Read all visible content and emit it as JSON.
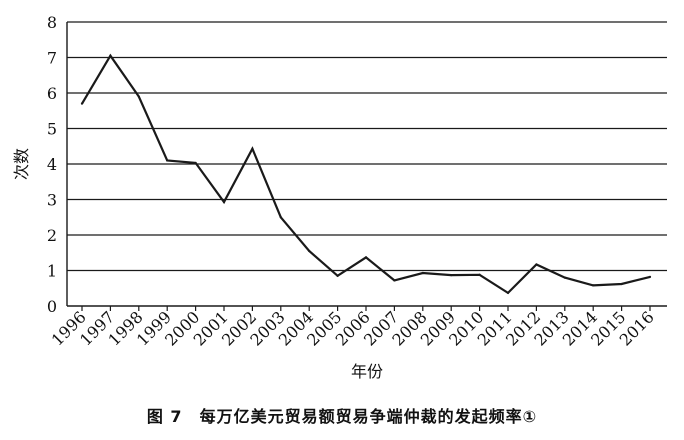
{
  "chart_data": {
    "type": "line",
    "xlabel": "年份",
    "ylabel": "次数",
    "ylim": [
      0,
      8
    ],
    "yticks": [
      "0",
      "1",
      "2",
      "3",
      "4",
      "5",
      "6",
      "7",
      "8"
    ],
    "grid": "horizontal",
    "categories": [
      "1996",
      "1997",
      "1998",
      "1999",
      "2000",
      "2001",
      "2002",
      "2003",
      "2004",
      "2005",
      "2006",
      "2007",
      "2008",
      "2009",
      "2010",
      "2011",
      "2012",
      "2013",
      "2014",
      "2015",
      "2016"
    ],
    "series": [
      {
        "values": [
          5.7,
          7.05,
          5.9,
          4.1,
          4.03,
          2.93,
          4.43,
          2.5,
          1.55,
          0.85,
          1.37,
          0.72,
          0.93,
          0.87,
          0.88,
          0.37,
          1.17,
          0.8,
          0.58,
          0.62,
          0.82
        ]
      }
    ],
    "colors": {
      "line": "#1a1a1a",
      "grid": "#1a1a1a",
      "axis": "#1a1a1a"
    }
  },
  "caption": "图 7　每万亿美元贸易额贸易争端仲裁的发起频率①"
}
